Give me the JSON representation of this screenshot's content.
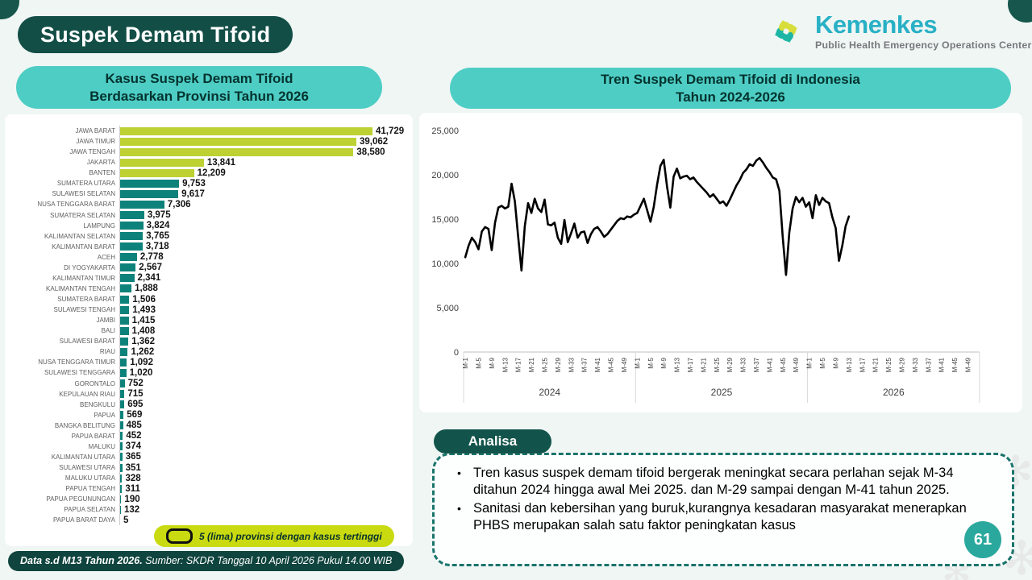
{
  "slide": {
    "title": "Suspek Demam Tifoid",
    "page_number": "61",
    "left_chart_title": {
      "line1": "Kasus Suspek Demam Tifoid",
      "line2": "Berdasarkan Provinsi Tahun 2026"
    },
    "right_chart_title": {
      "line1": "Tren Suspek Demam Tifoid di Indonesia",
      "line2": "Tahun 2024-2026"
    },
    "legend": {
      "label": "5 (lima) provinsi dengan kasus tertinggi"
    },
    "footer": {
      "bold_part": "Data s.d M13 Tahun 2026.",
      "normal_part": " Sumber: SKDR Tanggal 10 April 2026 Pukul  14.00 WIB"
    },
    "analysis": {
      "header": "Analisa",
      "bullets": [
        "Tren kasus suspek demam tifoid  bergerak meningkat secara perlahan sejak M-34 ditahun 2024 hingga awal Mei 2025. dan M-29 sampai dengan M-41 tahun 2025.",
        "Sanitasi dan kebersihan yang buruk,kurangnya kesadaran masyarakat menerapkan PHBS merupakan salah satu faktor peningkatan kasus"
      ]
    }
  },
  "logo": {
    "brand": "Kemenkes",
    "subtitle": "Public Health Emergency Operations Center"
  },
  "colors": {
    "dark_teal": "#124e46",
    "light_teal": "#4ecdc5",
    "bar_highlight": "#bdd133",
    "bar_normal": "#0d827a",
    "legend_bg": "#c9da10",
    "line_color": "#000000",
    "brand_cyan": "#28b0c5",
    "logo_teal": "#1db6a5",
    "logo_lime": "#d7de3b",
    "badge_teal": "#2aa89d"
  },
  "chart_data": [
    {
      "type": "bar",
      "orientation": "horizontal",
      "title": "Kasus Suspek Demam Tifoid Berdasarkan Provinsi Tahun 2026",
      "categories": [
        "JAWA BARAT",
        "JAWA TIMUR",
        "JAWA TENGAH",
        "JAKARTA",
        "BANTEN",
        "SUMATERA UTARA",
        "SULAWESI SELATAN",
        "NUSA TENGGARA BARAT",
        "SUMATERA SELATAN",
        "LAMPUNG",
        "KALIMANTAN SELATAN",
        "KALIMANTAN BARAT",
        "ACEH",
        "DI YOGYAKARTA",
        "KALIMANTAN TIMUR",
        "KALIMANTAN TENGAH",
        "SUMATERA BARAT",
        "SULAWESI TENGAH",
        "JAMBI",
        "BALI",
        "SULAWESI BARAT",
        "RIAU",
        "NUSA TENGGARA TIMUR",
        "SULAWESI TENGGARA",
        "GORONTALO",
        "KEPULAUAN RIAU",
        "BENGKULU",
        "PAPUA",
        "BANGKA BELITUNG",
        "PAPUA BARAT",
        "MALUKU",
        "KALIMANTAN UTARA",
        "SULAWESI UTARA",
        "MALUKU UTARA",
        "PAPUA TENGAH",
        "PAPUA PEGUNUNGAN",
        "PAPUA SELATAN",
        "PAPUA BARAT DAYA"
      ],
      "values": [
        41729,
        39062,
        38580,
        13841,
        12209,
        9753,
        9617,
        7306,
        3975,
        3824,
        3765,
        3718,
        2778,
        2567,
        2341,
        1888,
        1506,
        1493,
        1415,
        1408,
        1362,
        1262,
        1092,
        1020,
        752,
        715,
        695,
        569,
        485,
        452,
        374,
        365,
        351,
        328,
        311,
        190,
        132,
        5
      ],
      "highlight_count": 5,
      "highlight_note": "5 (lima) provinsi dengan kasus tertinggi",
      "xlim": [
        0,
        45000
      ]
    },
    {
      "type": "line",
      "title": "Tren Suspek Demam Tifoid di Indonesia Tahun 2024-2026",
      "ylabel": "",
      "ylim": [
        0,
        25000
      ],
      "y_tick_labels": [
        "0",
        "5,000",
        "10,000",
        "15,000",
        "20,000",
        "25,000"
      ],
      "x_groups": [
        "2024",
        "2025",
        "2026"
      ],
      "x_tick_labels": [
        "M-1",
        "M-5",
        "M-9",
        "M-13",
        "M-17",
        "M-21",
        "M-25",
        "M-29",
        "M-33",
        "M-37",
        "M-41",
        "M-45",
        "M-49"
      ],
      "weeks_per_year": 52,
      "series": [
        {
          "name": "Suspek Demam Tifoid",
          "values_by_year": {
            "2024": [
              10700,
              12000,
              12900,
              12400,
              11600,
              13600,
              14100,
              13900,
              11500,
              14600,
              16300,
              16500,
              16200,
              16400,
              19000,
              17000,
              13000,
              9200,
              14200,
              16800,
              15700,
              17300,
              16200,
              15800,
              17200,
              14400,
              14300,
              14600,
              12900,
              12200,
              14900,
              12400,
              13400,
              14500,
              12900,
              13500,
              13600,
              12300,
              13300,
              13900,
              14100,
              13600,
              13000,
              13300,
              13800,
              14300,
              14800,
              15100,
              15000,
              15300,
              15200,
              15500
            ],
            "2025": [
              15700,
              16500,
              17300,
              16000,
              14700,
              16400,
              18900,
              21000,
              21700,
              18700,
              16300,
              19800,
              20700,
              19600,
              19800,
              19900,
              19500,
              19700,
              19200,
              18800,
              18400,
              18000,
              17500,
              17800,
              17300,
              16800,
              17000,
              16500,
              17200,
              18000,
              18800,
              19400,
              20200,
              20600,
              21200,
              21000,
              21600,
              21900,
              21400,
              20800,
              20300,
              19700,
              19500,
              18200,
              13000,
              8700,
              13500,
              16200,
              17500,
              16900,
              17400,
              16400
            ],
            "2026": [
              16900,
              15100,
              17700,
              16600,
              17400,
              17000,
              16800,
              15200,
              14000,
              10300,
              12000,
              14200,
              15300
            ]
          }
        }
      ],
      "legend_position": "none",
      "grid": "year-separators-only"
    }
  ]
}
